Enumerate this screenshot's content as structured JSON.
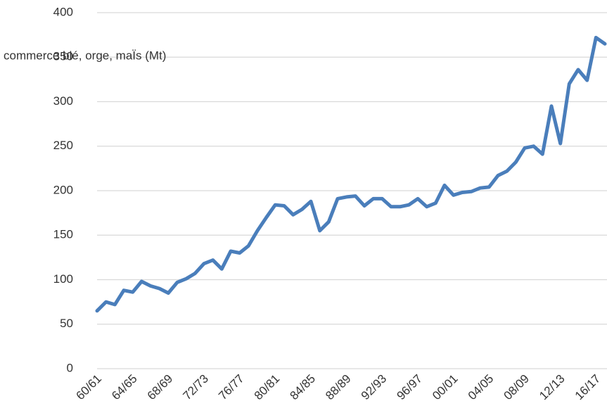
{
  "chart_data": {
    "type": "line",
    "title": "commerce blé, orge, maÏs (Mt)",
    "categories": [
      "60/61",
      null,
      null,
      null,
      "64/65",
      null,
      null,
      null,
      "68/69",
      null,
      null,
      null,
      "72/73",
      null,
      null,
      null,
      "76/77",
      null,
      null,
      null,
      "80/81",
      null,
      null,
      null,
      "84/85",
      null,
      null,
      null,
      "88/89",
      null,
      null,
      null,
      "92/93",
      null,
      null,
      null,
      "96/97",
      null,
      null,
      null,
      "00/01",
      null,
      null,
      null,
      "04/05",
      null,
      null,
      null,
      "08/09",
      null,
      null,
      null,
      "12/13",
      null,
      null,
      null,
      "16/17",
      null
    ],
    "series": [
      {
        "name": "commerce blé, orge, maÏs (Mt)",
        "color": "#4a7ebb",
        "values": [
          65,
          75,
          72,
          88,
          86,
          98,
          93,
          90,
          85,
          97,
          101,
          107,
          118,
          122,
          112,
          132,
          130,
          138,
          155,
          170,
          184,
          183,
          173,
          179,
          188,
          155,
          165,
          191,
          193,
          194,
          183,
          191,
          191,
          182,
          182,
          184,
          191,
          182,
          186,
          206,
          195,
          198,
          199,
          203,
          204,
          217,
          222,
          232,
          248,
          250,
          241,
          295,
          253,
          320,
          336,
          324,
          372,
          365
        ]
      }
    ],
    "ylim": [
      0,
      400
    ],
    "yticks": [
      0,
      50,
      100,
      150,
      200,
      250,
      300,
      350,
      400
    ],
    "grid": true
  }
}
